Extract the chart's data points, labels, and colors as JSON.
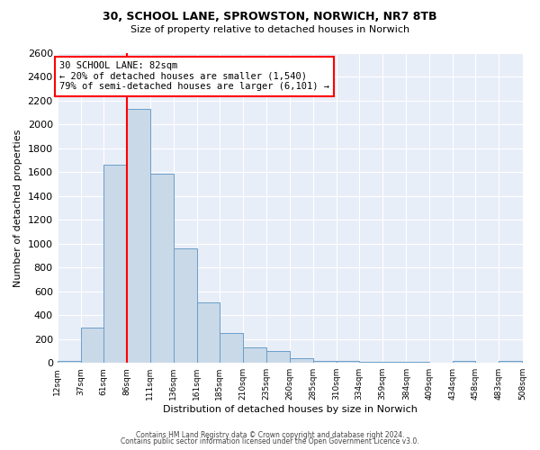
{
  "title1": "30, SCHOOL LANE, SPROWSTON, NORWICH, NR7 8TB",
  "title2": "Size of property relative to detached houses in Norwich",
  "xlabel": "Distribution of detached houses by size in Norwich",
  "ylabel": "Number of detached properties",
  "bin_labels": [
    "12sqm",
    "37sqm",
    "61sqm",
    "86sqm",
    "111sqm",
    "136sqm",
    "161sqm",
    "185sqm",
    "210sqm",
    "235sqm",
    "260sqm",
    "285sqm",
    "310sqm",
    "334sqm",
    "359sqm",
    "384sqm",
    "409sqm",
    "434sqm",
    "458sqm",
    "483sqm",
    "508sqm"
  ],
  "bar_heights": [
    20,
    295,
    1660,
    2130,
    1590,
    960,
    505,
    250,
    130,
    100,
    40,
    20,
    15,
    10,
    10,
    8,
    5,
    15,
    5,
    20
  ],
  "bar_color": "#c9d9e8",
  "bar_edge_color": "#6b9ec8",
  "vline_x_label": "86sqm",
  "vline_color": "red",
  "annotation_title": "30 SCHOOL LANE: 82sqm",
  "annotation_line1": "← 20% of detached houses are smaller (1,540)",
  "annotation_line2": "79% of semi-detached houses are larger (6,101) →",
  "ylim": [
    0,
    2600
  ],
  "yticks": [
    0,
    200,
    400,
    600,
    800,
    1000,
    1200,
    1400,
    1600,
    1800,
    2000,
    2200,
    2400,
    2600
  ],
  "footer1": "Contains HM Land Registry data © Crown copyright and database right 2024.",
  "footer2": "Contains public sector information licensed under the Open Government Licence v3.0.",
  "bin_width": 25,
  "bin_starts": [
    12,
    37,
    61,
    86,
    111,
    136,
    161,
    185,
    210,
    235,
    260,
    285,
    310,
    334,
    359,
    384,
    409,
    434,
    458,
    483
  ]
}
